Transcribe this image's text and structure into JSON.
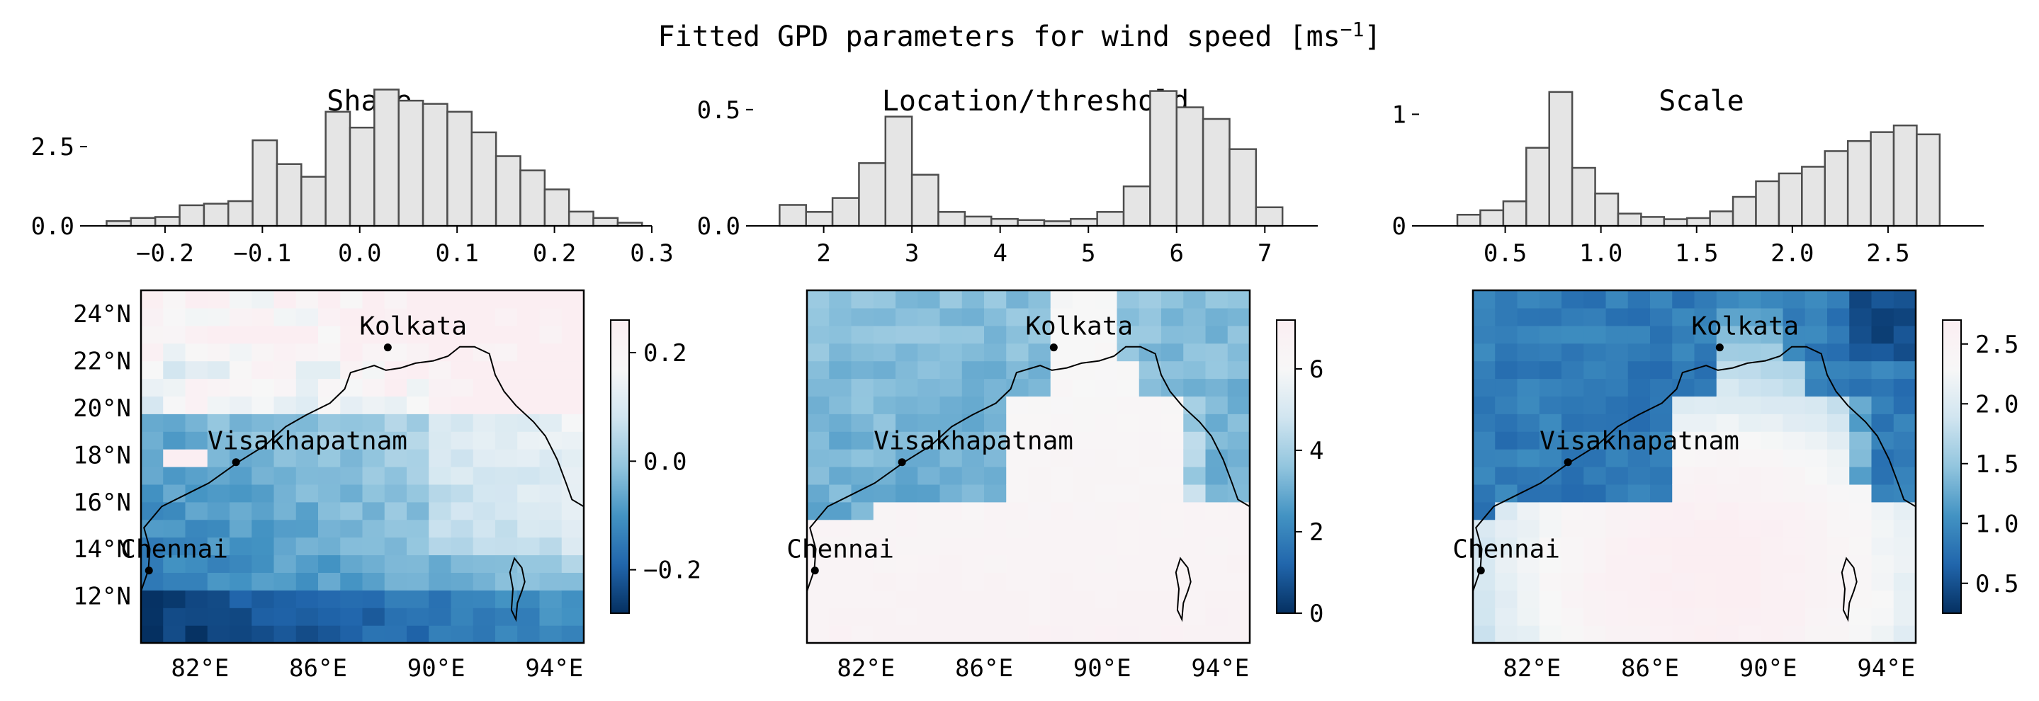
{
  "figure": {
    "title_main": "Fitted GPD parameters for wind speed [ms",
    "title_sup": "−1",
    "title_end": "]"
  },
  "colors": {
    "bar_fill": "#e5e5e5",
    "bar_edge": "#4d4d4d",
    "land_edge": "#000000",
    "cmap": [
      "#053061",
      "#2166ac",
      "#4393c3",
      "#92c5de",
      "#d1e5f0",
      "#f7f7f7",
      "#fbeef2"
    ]
  },
  "cities": [
    {
      "name": "Kolkata",
      "lon": 88.36,
      "lat": 22.57
    },
    {
      "name": "Visakhapatnam",
      "lon": 83.22,
      "lat": 17.69
    },
    {
      "name": "Chennai",
      "lon": 80.27,
      "lat": 13.08
    }
  ],
  "map_axes": {
    "lon_ticks": [
      {
        "v": 82,
        "t": "82°E"
      },
      {
        "v": 86,
        "t": "86°E"
      },
      {
        "v": 90,
        "t": "90°E"
      },
      {
        "v": 94,
        "t": "94°E"
      }
    ],
    "lat_ticks": [
      {
        "v": 24,
        "t": "24°N"
      },
      {
        "v": 22,
        "t": "22°N"
      },
      {
        "v": 20,
        "t": "20°N"
      },
      {
        "v": 18,
        "t": "18°N"
      },
      {
        "v": 16,
        "t": "16°N"
      },
      {
        "v": 14,
        "t": "14°N"
      },
      {
        "v": 12,
        "t": "12°N"
      }
    ]
  },
  "chart_data": [
    {
      "type": "bar",
      "title": "Shape",
      "bin_edges": [
        -0.26,
        -0.235,
        -0.21,
        -0.185,
        -0.16,
        -0.135,
        -0.11,
        -0.085,
        -0.06,
        -0.035,
        -0.01,
        0.015,
        0.04,
        0.065,
        0.09,
        0.115,
        0.14,
        0.165,
        0.19,
        0.215,
        0.24,
        0.265,
        0.29
      ],
      "values": [
        0.15,
        0.25,
        0.28,
        0.65,
        0.7,
        0.78,
        2.7,
        1.95,
        1.55,
        3.6,
        3.1,
        4.3,
        3.95,
        3.85,
        3.6,
        2.95,
        2.2,
        1.75,
        1.15,
        0.45,
        0.25,
        0.1
      ],
      "xlim": [
        -0.28,
        0.3
      ],
      "xticks": [
        -0.2,
        -0.1,
        0.0,
        0.1,
        0.2,
        0.3
      ],
      "xtick_labels": [
        "−0.2",
        "−0.1",
        "0.0",
        "0.1",
        "0.2",
        "0.3"
      ],
      "ylim": [
        0,
        4.4
      ],
      "yticks": [
        0.0,
        2.5
      ],
      "ytick_labels": [
        "0.0",
        "2.5"
      ]
    },
    {
      "type": "bar",
      "title": "Location/threshold",
      "bin_edges": [
        1.5,
        1.8,
        2.1,
        2.4,
        2.7,
        3.0,
        3.3,
        3.6,
        3.9,
        4.2,
        4.5,
        4.8,
        5.1,
        5.4,
        5.7,
        6.0,
        6.3,
        6.6,
        6.9,
        7.2
      ],
      "values": [
        0.09,
        0.06,
        0.12,
        0.27,
        0.47,
        0.22,
        0.06,
        0.04,
        0.03,
        0.025,
        0.02,
        0.03,
        0.06,
        0.17,
        0.58,
        0.51,
        0.46,
        0.33,
        0.08,
        0.04
      ],
      "xlim": [
        1.2,
        7.6
      ],
      "xticks": [
        2,
        3,
        4,
        5,
        6,
        7
      ],
      "xtick_labels": [
        "2",
        "3",
        "4",
        "5",
        "6",
        "7"
      ],
      "ylim": [
        0,
        0.6
      ],
      "yticks": [
        0.0,
        0.5
      ],
      "ytick_labels": [
        "0.0",
        "0.5"
      ]
    },
    {
      "type": "bar",
      "title": "Scale",
      "bin_edges": [
        0.25,
        0.37,
        0.49,
        0.61,
        0.73,
        0.85,
        0.97,
        1.09,
        1.21,
        1.33,
        1.45,
        1.57,
        1.69,
        1.81,
        1.93,
        2.05,
        2.17,
        2.29,
        2.41,
        2.53,
        2.65,
        2.77
      ],
      "values": [
        0.1,
        0.14,
        0.22,
        0.7,
        1.2,
        0.52,
        0.29,
        0.11,
        0.08,
        0.06,
        0.07,
        0.13,
        0.26,
        0.4,
        0.47,
        0.53,
        0.67,
        0.76,
        0.84,
        0.9,
        0.82
      ],
      "xlim": [
        0.05,
        3.0
      ],
      "xticks": [
        0.5,
        1.0,
        1.5,
        2.0,
        2.5
      ],
      "xtick_labels": [
        "0.5",
        "1.0",
        "1.5",
        "2.0",
        "2.5"
      ],
      "ylim": [
        0,
        1.25
      ],
      "yticks": [
        0,
        1
      ],
      "ytick_labels": [
        "0",
        "1"
      ]
    },
    {
      "type": "heatmap",
      "title": "Shape",
      "lon_range": [
        80,
        95
      ],
      "lat_range": [
        10,
        25
      ],
      "field": "shape",
      "vmin": -0.28,
      "vmax": 0.26,
      "cbar_ticks": [
        -0.2,
        0.0,
        0.2
      ],
      "cbar_labels": [
        "−0.2",
        "0.0",
        "0.2"
      ]
    },
    {
      "type": "heatmap",
      "title": "Location/threshold",
      "lon_range": [
        80,
        95
      ],
      "lat_range": [
        10,
        25
      ],
      "field": "location",
      "vmin": 0,
      "vmax": 7.2,
      "cbar_ticks": [
        0,
        2,
        4,
        6
      ],
      "cbar_labels": [
        "0",
        "2",
        "4",
        "6"
      ]
    },
    {
      "type": "heatmap",
      "title": "Scale",
      "lon_range": [
        80,
        95
      ],
      "lat_range": [
        10,
        25
      ],
      "field": "scale",
      "vmin": 0.25,
      "vmax": 2.7,
      "cbar_ticks": [
        0.5,
        1.0,
        1.5,
        2.0,
        2.5
      ],
      "cbar_labels": [
        "0.5",
        "1.0",
        "1.5",
        "2.0",
        "2.5"
      ]
    }
  ]
}
